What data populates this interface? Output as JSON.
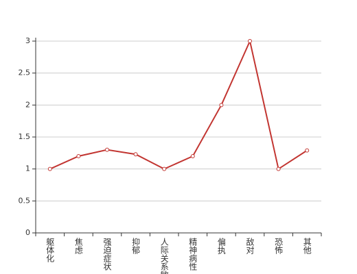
{
  "chart_data": {
    "type": "line",
    "categories": [
      "躯体化",
      "焦虑",
      "强迫症状",
      "抑郁",
      "人际关系敏感",
      "精神病性",
      "偏执",
      "敌对",
      "恐怖",
      "其他"
    ],
    "values": [
      1,
      1.2,
      1.3,
      1.23,
      1,
      1.2,
      2,
      3,
      1,
      1.29
    ],
    "color": "#c23531",
    "ylim": [
      0,
      3
    ],
    "yticks": [
      0,
      0.5,
      1,
      1.5,
      2,
      2.5,
      3
    ],
    "grid": true
  }
}
